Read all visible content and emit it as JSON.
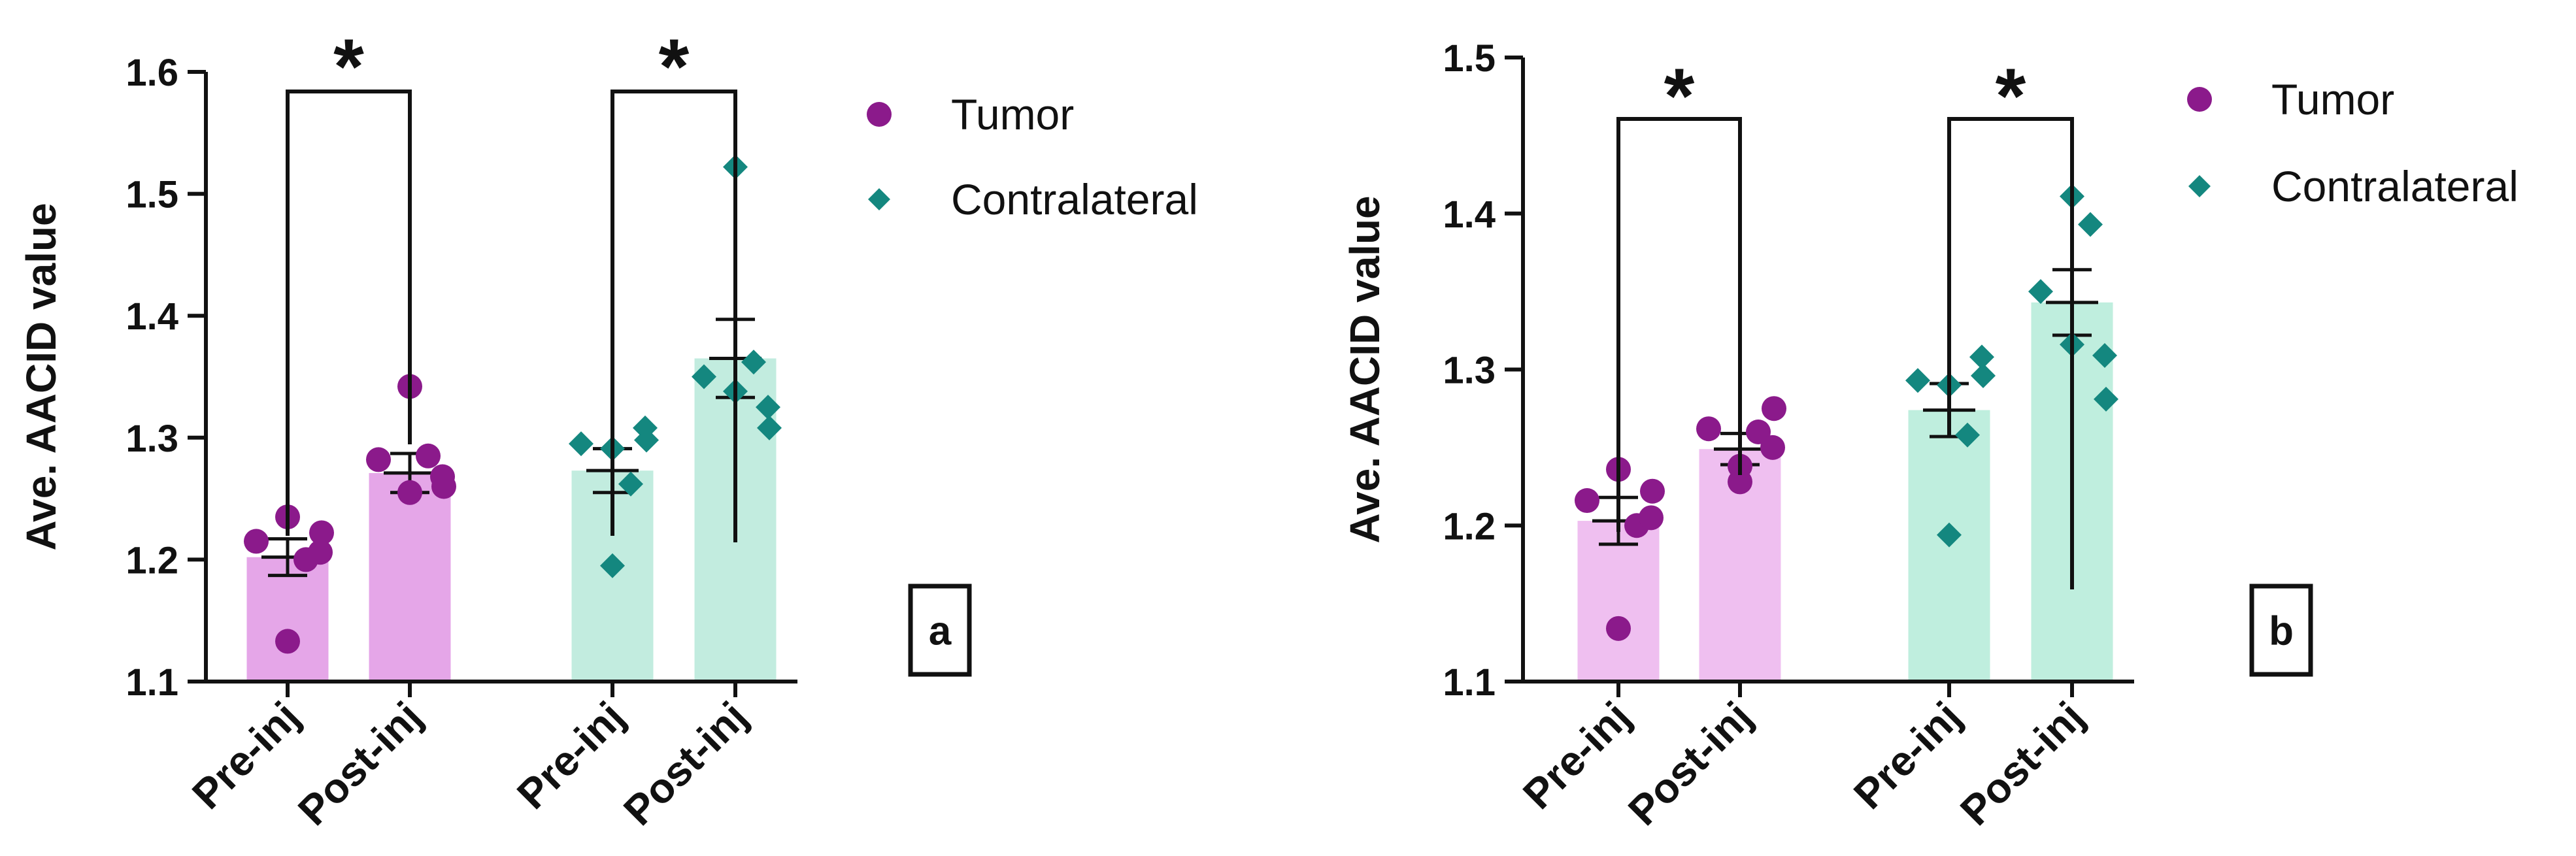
{
  "chart_data": [
    {
      "type": "bar",
      "panel_label": "a",
      "ylabel": "Ave. AACID value",
      "ylim": [
        1.1,
        1.6
      ],
      "yticks": [
        "1.1",
        "1.2",
        "1.3",
        "1.4",
        "1.5",
        "1.6"
      ],
      "categories": [
        "Pre-inj",
        "Post-inj",
        "Pre-inj",
        "Post-inj"
      ],
      "legend": {
        "placement": "top-right",
        "entries": [
          "Tumor",
          "Contralateral"
        ]
      },
      "series": [
        {
          "name": "Tumor",
          "color": "#8b1a8b",
          "bar_color": "#e5a6e8",
          "marker": "circle",
          "bars": [
            {
              "category": "Pre-inj",
              "mean": 1.202,
              "sem": 0.015,
              "points": [
                1.133,
                1.2,
                1.215,
                1.222,
                1.235,
                1.206
              ]
            },
            {
              "category": "Post-inj",
              "mean": 1.271,
              "sem": 0.016,
              "points": [
                1.342,
                1.285,
                1.282,
                1.26,
                1.255,
                1.268
              ]
            }
          ]
        },
        {
          "name": "Contralateral",
          "color": "#14877f",
          "bar_color": "#c2ecdf",
          "marker": "diamond",
          "bars": [
            {
              "category": "Pre-inj",
              "mean": 1.273,
              "sem": 0.018,
              "points": [
                1.195,
                1.262,
                1.295,
                1.298,
                1.291,
                1.308
              ]
            },
            {
              "category": "Post-inj",
              "mean": 1.365,
              "sem": 0.032,
              "points": [
                1.522,
                1.362,
                1.35,
                1.308,
                1.338,
                1.325
              ]
            }
          ]
        }
      ],
      "significance": [
        {
          "between": [
            "Tumor Pre-inj",
            "Tumor Post-inj"
          ],
          "label": "*"
        },
        {
          "between": [
            "Contralateral Pre-inj",
            "Contralateral Post-inj"
          ],
          "label": "*"
        }
      ]
    },
    {
      "type": "bar",
      "panel_label": "b",
      "ylabel": "Ave. AACID value",
      "ylim": [
        1.1,
        1.5
      ],
      "yticks": [
        "1.1",
        "1.2",
        "1.3",
        "1.4",
        "1.5"
      ],
      "categories": [
        "Pre-inj",
        "Post-inj",
        "Pre-inj",
        "Post-inj"
      ],
      "legend": {
        "placement": "top-right",
        "entries": [
          "Tumor",
          "Contralateral"
        ]
      },
      "series": [
        {
          "name": "Tumor",
          "color": "#8b1a8b",
          "bar_color": "#efbff0",
          "marker": "circle",
          "bars": [
            {
              "category": "Pre-inj",
              "mean": 1.203,
              "sem": 0.015,
              "points": [
                1.134,
                1.2,
                1.216,
                1.222,
                1.236,
                1.205
              ]
            },
            {
              "category": "Post-inj",
              "mean": 1.249,
              "sem": 0.01,
              "points": [
                1.228,
                1.26,
                1.262,
                1.275,
                1.238,
                1.25
              ]
            }
          ]
        },
        {
          "name": "Contralateral",
          "color": "#14877f",
          "bar_color": "#bfeede",
          "marker": "diamond",
          "bars": [
            {
              "category": "Pre-inj",
              "mean": 1.274,
              "sem": 0.017,
              "points": [
                1.194,
                1.258,
                1.293,
                1.296,
                1.29,
                1.308
              ]
            },
            {
              "category": "Post-inj",
              "mean": 1.343,
              "sem": 0.021,
              "points": [
                1.411,
                1.393,
                1.35,
                1.281,
                1.316,
                1.309
              ]
            }
          ]
        }
      ],
      "significance": [
        {
          "between": [
            "Tumor Pre-inj",
            "Tumor Post-inj"
          ],
          "label": "*"
        },
        {
          "between": [
            "Contralateral Pre-inj",
            "Contralateral Post-inj"
          ],
          "label": "*"
        }
      ]
    }
  ]
}
